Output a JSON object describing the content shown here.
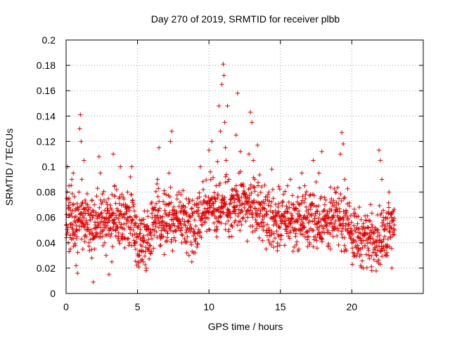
{
  "chart_data": {
    "type": "scatter",
    "title": "Day 270 of 2019, SRMTID for receiver plbb",
    "xlabel": "GPS time / hours",
    "ylabel": "SRMTID / TECUs",
    "xlim": [
      0,
      25
    ],
    "ylim": [
      0,
      0.2
    ],
    "xticks": [
      0,
      5,
      10,
      15,
      20
    ],
    "xtick_labels": [
      "0",
      "5",
      "10",
      "15",
      "20"
    ],
    "yticks": [
      0,
      0.02,
      0.04,
      0.06,
      0.08,
      0.1,
      0.12,
      0.14,
      0.16,
      0.18,
      0.2
    ],
    "ytick_labels": [
      "0",
      "0.02",
      "0.04",
      "0.06",
      "0.08",
      "0.1",
      "0.12",
      "0.14",
      "0.16",
      "0.18",
      "0.2"
    ],
    "grid": true,
    "marker": "+",
    "color": "#e00000",
    "series": [
      {
        "name": "plbb",
        "points": [
          [
            0.05,
            0.075
          ],
          [
            0.1,
            0.1
          ],
          [
            0.15,
            0.04
          ],
          [
            0.2,
            0.085
          ],
          [
            0.25,
            0.062
          ],
          [
            0.3,
            0.035
          ],
          [
            0.35,
            0.055
          ],
          [
            0.4,
            0.09
          ],
          [
            0.45,
            0.07
          ],
          [
            0.5,
            0.095
          ],
          [
            0.55,
            0.047
          ],
          [
            0.6,
            0.06
          ],
          [
            0.65,
            0.038
          ],
          [
            0.7,
            0.022
          ],
          [
            0.75,
            0.045
          ],
          [
            0.8,
            0.016
          ],
          [
            0.85,
            0.058
          ],
          [
            0.9,
            0.08
          ],
          [
            0.95,
            0.13
          ],
          [
            1.0,
            0.141
          ],
          [
            1.05,
            0.12
          ],
          [
            1.1,
            0.09
          ],
          [
            1.15,
            0.072
          ],
          [
            1.2,
            0.055
          ],
          [
            1.25,
            0.105
          ],
          [
            1.3,
            0.045
          ],
          [
            1.35,
            0.063
          ],
          [
            1.4,
            0.05
          ],
          [
            1.5,
            0.07
          ],
          [
            1.6,
            0.04
          ],
          [
            1.7,
            0.058
          ],
          [
            1.8,
            0.028
          ],
          [
            1.9,
            0.009
          ],
          [
            2.0,
            0.035
          ],
          [
            2.1,
            0.062
          ],
          [
            2.2,
            0.083
          ],
          [
            2.3,
            0.108
          ],
          [
            2.4,
            0.095
          ],
          [
            2.5,
            0.06
          ],
          [
            2.6,
            0.05
          ],
          [
            2.7,
            0.04
          ],
          [
            2.8,
            0.03
          ],
          [
            2.9,
            0.07
          ],
          [
            3.0,
            0.015
          ],
          [
            3.1,
            0.045
          ],
          [
            3.2,
            0.025
          ],
          [
            3.3,
            0.11
          ],
          [
            3.4,
            0.085
          ],
          [
            3.5,
            0.06
          ],
          [
            3.6,
            0.052
          ],
          [
            3.7,
            0.075
          ],
          [
            3.8,
            0.1
          ],
          [
            3.9,
            0.045
          ],
          [
            4.0,
            0.062
          ],
          [
            4.1,
            0.036
          ],
          [
            4.2,
            0.055
          ],
          [
            4.3,
            0.08
          ],
          [
            4.4,
            0.068
          ],
          [
            4.5,
            0.092
          ],
          [
            4.6,
            0.1
          ],
          [
            4.7,
            0.05
          ],
          [
            4.8,
            0.04
          ],
          [
            4.9,
            0.06
          ],
          [
            5.0,
            0.045
          ],
          [
            5.1,
            0.03
          ],
          [
            5.2,
            0.055
          ],
          [
            5.3,
            0.033
          ],
          [
            5.4,
            0.025
          ],
          [
            5.5,
            0.042
          ],
          [
            5.6,
            0.018
          ],
          [
            5.7,
            0.065
          ],
          [
            5.8,
            0.035
          ],
          [
            5.9,
            0.05
          ],
          [
            6.0,
            0.072
          ],
          [
            6.2,
            0.068
          ],
          [
            6.4,
            0.09
          ],
          [
            6.5,
            0.115
          ],
          [
            6.6,
            0.06
          ],
          [
            6.8,
            0.045
          ],
          [
            7.0,
            0.078
          ],
          [
            7.2,
            0.095
          ],
          [
            7.3,
            0.12
          ],
          [
            7.4,
            0.128
          ],
          [
            7.5,
            0.062
          ],
          [
            7.7,
            0.05
          ],
          [
            7.9,
            0.08
          ],
          [
            8.0,
            0.055
          ],
          [
            8.2,
            0.065
          ],
          [
            8.4,
            0.04
          ],
          [
            8.6,
            0.03
          ],
          [
            8.8,
            0.025
          ],
          [
            9.0,
            0.058
          ],
          [
            9.2,
            0.075
          ],
          [
            9.4,
            0.1
          ],
          [
            9.6,
            0.082
          ],
          [
            9.8,
            0.06
          ],
          [
            10.0,
            0.113
          ],
          [
            10.1,
            0.096
          ],
          [
            10.2,
            0.12
          ],
          [
            10.3,
            0.071
          ],
          [
            10.4,
            0.05
          ],
          [
            10.5,
            0.085
          ],
          [
            10.6,
            0.104
          ],
          [
            10.7,
            0.148
          ],
          [
            10.8,
            0.128
          ],
          [
            10.9,
            0.165
          ],
          [
            11.0,
            0.181
          ],
          [
            11.05,
            0.172
          ],
          [
            11.1,
            0.135
          ],
          [
            11.15,
            0.115
          ],
          [
            11.2,
            0.105
          ],
          [
            11.3,
            0.148
          ],
          [
            11.4,
            0.09
          ],
          [
            11.5,
            0.06
          ],
          [
            11.6,
            0.045
          ],
          [
            11.7,
            0.075
          ],
          [
            11.8,
            0.065
          ],
          [
            11.9,
            0.125
          ],
          [
            12.0,
            0.158
          ],
          [
            12.1,
            0.095
          ],
          [
            12.2,
            0.112
          ],
          [
            12.3,
            0.085
          ],
          [
            12.4,
            0.06
          ],
          [
            12.6,
            0.078
          ],
          [
            12.8,
            0.11
          ],
          [
            12.9,
            0.143
          ],
          [
            13.0,
            0.135
          ],
          [
            13.1,
            0.105
          ],
          [
            13.2,
            0.09
          ],
          [
            13.4,
            0.117
          ],
          [
            13.6,
            0.07
          ],
          [
            13.8,
            0.05
          ],
          [
            14.0,
            0.035
          ],
          [
            14.2,
            0.08
          ],
          [
            14.4,
            0.098
          ],
          [
            14.5,
            0.075
          ],
          [
            14.7,
            0.055
          ],
          [
            14.9,
            0.045
          ],
          [
            15.1,
            0.062
          ],
          [
            15.3,
            0.038
          ],
          [
            15.5,
            0.085
          ],
          [
            15.7,
            0.09
          ],
          [
            15.9,
            0.07
          ],
          [
            16.1,
            0.05
          ],
          [
            16.3,
            0.065
          ],
          [
            16.5,
            0.095
          ],
          [
            16.7,
            0.085
          ],
          [
            16.9,
            0.06
          ],
          [
            17.1,
            0.078
          ],
          [
            17.3,
            0.105
          ],
          [
            17.5,
            0.088
          ],
          [
            17.7,
            0.095
          ],
          [
            17.9,
            0.112
          ],
          [
            18.1,
            0.07
          ],
          [
            18.3,
            0.05
          ],
          [
            18.5,
            0.035
          ],
          [
            18.7,
            0.06
          ],
          [
            18.9,
            0.08
          ],
          [
            19.1,
            0.075
          ],
          [
            19.2,
            0.11
          ],
          [
            19.3,
            0.127
          ],
          [
            19.4,
            0.118
          ],
          [
            19.5,
            0.09
          ],
          [
            19.6,
            0.065
          ],
          [
            19.8,
            0.048
          ],
          [
            20.0,
            0.04
          ],
          [
            20.2,
            0.03
          ],
          [
            20.4,
            0.055
          ],
          [
            20.6,
            0.035
          ],
          [
            20.8,
            0.02
          ],
          [
            21.0,
            0.042
          ],
          [
            21.2,
            0.03
          ],
          [
            21.4,
            0.018
          ],
          [
            21.6,
            0.04
          ],
          [
            21.8,
            0.062
          ],
          [
            21.9,
            0.113
          ],
          [
            22.0,
            0.105
          ],
          [
            22.1,
            0.09
          ],
          [
            22.2,
            0.06
          ],
          [
            22.3,
            0.045
          ],
          [
            22.4,
            0.03
          ],
          [
            22.5,
            0.055
          ],
          [
            22.6,
            0.08
          ],
          [
            22.7,
            0.045
          ],
          [
            22.8,
            0.02
          ],
          [
            22.9,
            0.065
          ],
          [
            23.0,
            0.05
          ]
        ]
      }
    ],
    "background_cloud": {
      "x_range": [
        0,
        23
      ],
      "y_range_approx": [
        0.01,
        0.11
      ],
      "density": "dense"
    }
  }
}
